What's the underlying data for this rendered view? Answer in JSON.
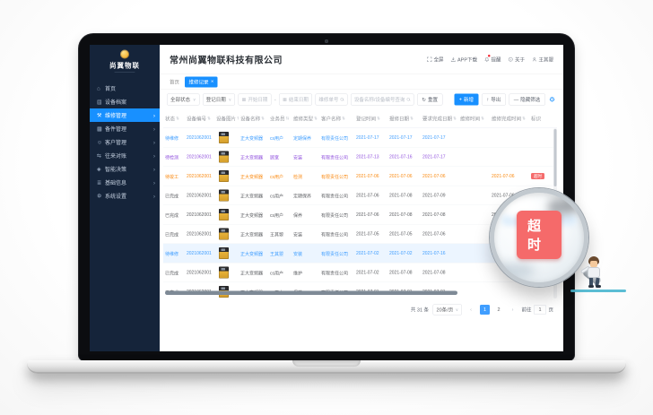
{
  "colors": {
    "accent": "#1890ff",
    "blue": "#409eff",
    "purple": "#9254de",
    "orange": "#fa8c16",
    "gray": "#606266",
    "badge_red": "#f56c6c",
    "sidebar_bg": "#15243a"
  },
  "icons": {
    "close": "×",
    "chevron_right": "›",
    "sort": "⇅",
    "caret_down": "∨",
    "calendar": "▦",
    "reset": "↻",
    "plus": "+",
    "export_arrow": "↑",
    "minus": "—",
    "gear": "⚙",
    "prev": "‹",
    "next": "›",
    "home": "⌂",
    "device-archive": "▤",
    "repair-management": "⚒",
    "spare-parts": "▦",
    "customer": "☺",
    "reconciliation": "⇆",
    "decision": "◈",
    "basic-info": "≣",
    "system-settings": "⚙"
  },
  "sidebar": {
    "logo_text": "尚翼物联",
    "items": [
      {
        "name": "home",
        "label": "首页",
        "icon": "home",
        "active": false,
        "arrow": false
      },
      {
        "name": "device-archive",
        "label": "设备档案",
        "icon": "device-archive",
        "active": false,
        "arrow": false
      },
      {
        "name": "repair-management",
        "label": "维修管理",
        "icon": "repair-management",
        "active": true,
        "arrow": true
      },
      {
        "name": "spare-parts",
        "label": "备件管理",
        "icon": "spare-parts",
        "active": false,
        "arrow": true
      },
      {
        "name": "customer",
        "label": "客户管理",
        "icon": "customer",
        "active": false,
        "arrow": true
      },
      {
        "name": "reconciliation",
        "label": "往来对账",
        "icon": "reconciliation",
        "active": false,
        "arrow": true
      },
      {
        "name": "decision",
        "label": "智能决策",
        "icon": "decision",
        "active": false,
        "arrow": true
      },
      {
        "name": "basic-info",
        "label": "基础信息",
        "icon": "basic-info",
        "active": false,
        "arrow": true
      },
      {
        "name": "system-settings",
        "label": "系统设置",
        "icon": "system-settings",
        "active": false,
        "arrow": true
      }
    ]
  },
  "header": {
    "company_title": "常州尚翼物联科技有限公司",
    "topbar": [
      {
        "name": "fullscreen",
        "label": "全屏"
      },
      {
        "name": "app-download",
        "label": "APP下载"
      },
      {
        "name": "notifications",
        "label": "提醒",
        "dot": true
      },
      {
        "name": "about",
        "label": "关于"
      },
      {
        "name": "user",
        "label": "王其曌"
      }
    ]
  },
  "tabs": [
    {
      "label": "首页",
      "active": false,
      "closable": false
    },
    {
      "label": "维修记录",
      "active": true,
      "closable": true
    }
  ],
  "filters": {
    "status_select": "全部状态",
    "date_type_select": "登记日期",
    "start_placeholder": "开始日期",
    "range_separator": "-",
    "end_placeholder": "结束日期",
    "order_placeholder": "维修单号",
    "device_placeholder": "设备名称/设备编号查询",
    "reset_label": "重置"
  },
  "toolbar": {
    "add_label": "新增",
    "export_label": "导出",
    "hide_filter_label": "隐藏筛选"
  },
  "table": {
    "columns": [
      {
        "key": "status",
        "label": "状态",
        "sortable": true
      },
      {
        "key": "device_no",
        "label": "设备编号",
        "sortable": true
      },
      {
        "key": "device_img",
        "label": "设备图片",
        "sortable": true
      },
      {
        "key": "device_name",
        "label": "设备名称",
        "sortable": true
      },
      {
        "key": "salesman",
        "label": "业务员",
        "sortable": true
      },
      {
        "key": "repair_type",
        "label": "维修类型",
        "sortable": true
      },
      {
        "key": "customer",
        "label": "客户名称",
        "sortable": true
      },
      {
        "key": "register_date",
        "label": "登记时间",
        "sortable": true
      },
      {
        "key": "report_date",
        "label": "报修日期",
        "sortable": true
      },
      {
        "key": "required_date",
        "label": "要求完成日期",
        "sortable": true
      },
      {
        "key": "repair_time",
        "label": "维修时间",
        "sortable": true
      },
      {
        "key": "finish_time",
        "label": "维修完成时间",
        "sortable": true
      },
      {
        "key": "badge",
        "label": "标识",
        "sortable": false
      }
    ],
    "rows": [
      {
        "status": "待维修",
        "color": "blue",
        "highlight": false,
        "device_no": "2021062001",
        "device_name": "正大变频器",
        "salesman": "cs用户",
        "repair_type": "定期保养",
        "customer": "有限责任公司",
        "register_date": "2021-07-17",
        "report_date": "2021-07-17",
        "required_date": "2021-07-17",
        "repair_time": "",
        "finish_time": "",
        "badge": ""
      },
      {
        "status": "待检测",
        "color": "purple",
        "highlight": false,
        "device_no": "2021062001",
        "device_name": "正大变频器",
        "salesman": "顾宽",
        "repair_type": "安装",
        "customer": "有限责任公司",
        "register_date": "2021-07-13",
        "report_date": "2021-07-16",
        "required_date": "2021-07-17",
        "repair_time": "",
        "finish_time": "",
        "badge": ""
      },
      {
        "status": "待竣工",
        "color": "orange",
        "highlight": false,
        "device_no": "2021062001",
        "device_name": "正大变频器",
        "salesman": "cs用户",
        "repair_type": "检测",
        "customer": "有限责任公司",
        "register_date": "2021-07-06",
        "report_date": "2021-07-06",
        "required_date": "2021-07-06",
        "repair_time": "",
        "finish_time": "2021-07-06",
        "badge": "超时"
      },
      {
        "status": "已完成",
        "color": "gray",
        "highlight": false,
        "device_no": "2021062001",
        "device_name": "正大变频器",
        "salesman": "cs用户",
        "repair_type": "定期保养",
        "customer": "有限责任公司",
        "register_date": "2021-07-06",
        "report_date": "2021-07-08",
        "required_date": "2021-07-09",
        "repair_time": "",
        "finish_time": "2021-07-06",
        "badge": ""
      },
      {
        "status": "已完成",
        "color": "gray",
        "highlight": false,
        "device_no": "2021062001",
        "device_name": "正大变频器",
        "salesman": "cs用户",
        "repair_type": "保养",
        "customer": "有限责任公司",
        "register_date": "2021-07-06",
        "report_date": "2021-07-08",
        "required_date": "2021-07-08",
        "repair_time": "",
        "finish_time": "2021-07-05",
        "badge": ""
      },
      {
        "status": "已完成",
        "color": "gray",
        "highlight": false,
        "device_no": "2021062001",
        "device_name": "正大变频器",
        "salesman": "王其曌",
        "repair_type": "安装",
        "customer": "有限责任公司",
        "register_date": "2021-07-05",
        "report_date": "2021-07-05",
        "required_date": "2021-07-06",
        "repair_time": "",
        "finish_time": "",
        "badge": ""
      },
      {
        "status": "待维修",
        "color": "blue",
        "highlight": true,
        "device_no": "2021062001",
        "device_name": "正大变频器",
        "salesman": "王其曌",
        "repair_type": "安装",
        "customer": "有限责任公司",
        "register_date": "2021-07-02",
        "report_date": "2021-07-02",
        "required_date": "2021-07-16",
        "repair_time": "",
        "finish_time": "2021-07-16",
        "badge": ""
      },
      {
        "status": "已完成",
        "color": "gray",
        "highlight": false,
        "device_no": "2021062001",
        "device_name": "正大变频器",
        "salesman": "cs用户",
        "repair_type": "维护",
        "customer": "有限责任公司",
        "register_date": "2021-07-02",
        "report_date": "2021-07-08",
        "required_date": "2021-07-08",
        "repair_time": "",
        "finish_time": "",
        "badge": ""
      },
      {
        "status": "已完成",
        "color": "gray",
        "highlight": false,
        "device_no": "2021062001",
        "device_name": "正大变频器",
        "salesman": "cs用户",
        "repair_type": "保养",
        "customer": "有限责任公司",
        "register_date": "2021-07-01",
        "report_date": "2021-07-01",
        "required_date": "2021-07-01",
        "repair_time": "",
        "finish_time": "",
        "badge": ""
      }
    ]
  },
  "pagination": {
    "total_label": "共 31 条",
    "page_size_label": "20条/页",
    "pages": [
      "1",
      "2"
    ],
    "active_page": "1",
    "goto_label": "前往",
    "goto_value": "1",
    "goto_suffix": "页"
  },
  "magnifier": {
    "badge_label": "超时"
  }
}
